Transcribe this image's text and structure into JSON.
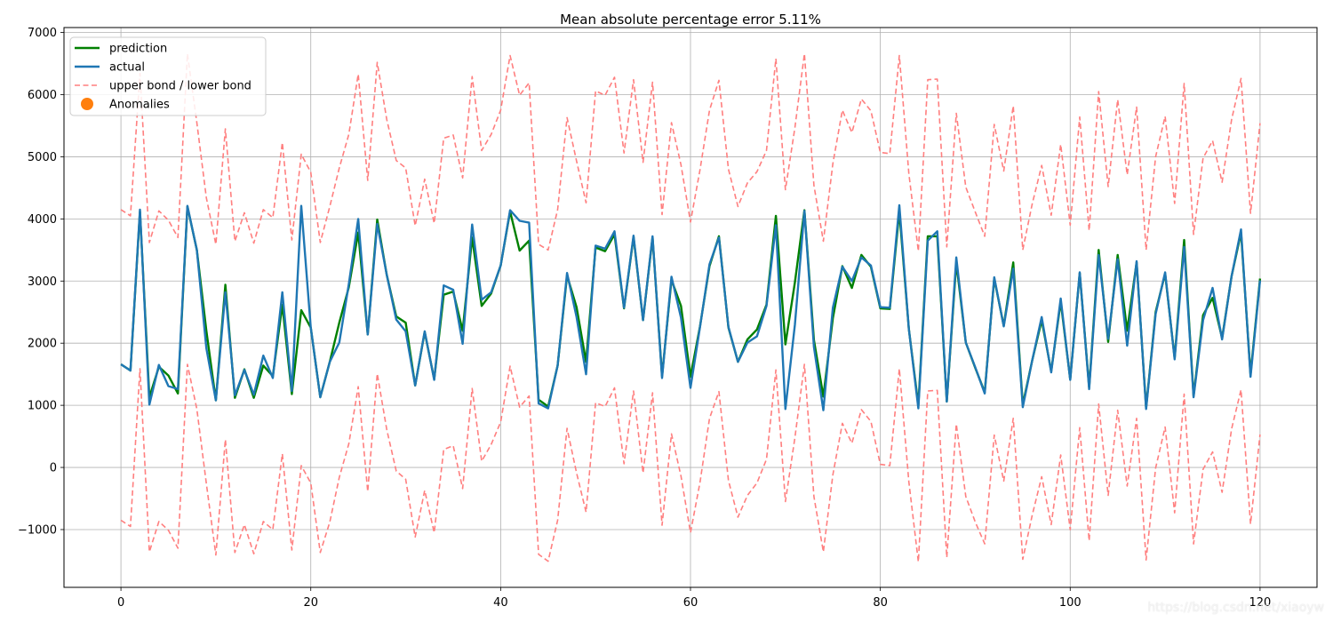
{
  "chart_data": {
    "type": "line",
    "title": "Mean absolute percentage error 5.11%",
    "xlabel": "",
    "ylabel": "",
    "xlim": [
      -6,
      126
    ],
    "ylim": [
      -1930,
      7080
    ],
    "x_ticks": [
      0,
      20,
      40,
      60,
      80,
      100,
      120
    ],
    "y_ticks": [
      -1000,
      0,
      1000,
      2000,
      3000,
      4000,
      5000,
      6000,
      7000
    ],
    "grid": true,
    "legend_position": "upper-left",
    "x": [
      0,
      1,
      2,
      3,
      4,
      5,
      6,
      7,
      8,
      9,
      10,
      11,
      12,
      13,
      14,
      15,
      16,
      17,
      18,
      19,
      20,
      21,
      22,
      23,
      24,
      25,
      26,
      27,
      28,
      29,
      30,
      31,
      32,
      33,
      34,
      35,
      36,
      37,
      38,
      39,
      40,
      41,
      42,
      43,
      44,
      45,
      46,
      47,
      48,
      49,
      50,
      51,
      52,
      53,
      54,
      55,
      56,
      57,
      58,
      59,
      60,
      61,
      62,
      63,
      64,
      65,
      66,
      67,
      68,
      69,
      70,
      71,
      72,
      73,
      74,
      75,
      76,
      77,
      78,
      79,
      80,
      81,
      82,
      83,
      84,
      85,
      86,
      87,
      88,
      89,
      90,
      91,
      92,
      93,
      94,
      95,
      96,
      97,
      98,
      99,
      100,
      101,
      102,
      103,
      104,
      105,
      106,
      107,
      108,
      109,
      110,
      111,
      112,
      113,
      114,
      115,
      116,
      117,
      118,
      119,
      120
    ],
    "series": [
      {
        "name": "prediction",
        "style": "solid",
        "color": "#008000",
        "values": [
          1660,
          1560,
          4120,
          1130,
          1620,
          1480,
          1190,
          4200,
          3500,
          2200,
          1080,
          2940,
          1120,
          1580,
          1120,
          1640,
          1470,
          2620,
          1180,
          2530,
          2250,
          1130,
          1700,
          2330,
          2900,
          3780,
          2140,
          3990,
          3100,
          2430,
          2330,
          1320,
          2180,
          1420,
          2780,
          2830,
          2200,
          3700,
          2600,
          2800,
          3250,
          4120,
          3490,
          3650,
          1090,
          980,
          1640,
          3090,
          2580,
          1700,
          3540,
          3480,
          3750,
          2560,
          3710,
          2370,
          3700,
          1470,
          3020,
          2600,
          1460,
          2270,
          3240,
          3720,
          2250,
          1700,
          2060,
          2220,
          2620,
          4050,
          1980,
          2980,
          4140,
          2050,
          1140,
          2400,
          3240,
          2890,
          3420,
          3230,
          2560,
          2550,
          4120,
          2230,
          1000,
          3720,
          3720,
          1060,
          3300,
          2010,
          1600,
          1210,
          3040,
          2280,
          3300,
          1010,
          1720,
          2370,
          1550,
          2670,
          1420,
          3130,
          1290,
          3500,
          2020,
          3420,
          2200,
          3300,
          960,
          2500,
          3120,
          1760,
          3660,
          1150,
          2450,
          2730,
          2080,
          3080,
          3780,
          1500,
          3040
        ]
      },
      {
        "name": "actual",
        "style": "solid",
        "color": "#1f77b4",
        "values": [
          1660,
          1560,
          4150,
          1010,
          1650,
          1310,
          1260,
          4210,
          3500,
          1920,
          1080,
          2820,
          1160,
          1570,
          1170,
          1800,
          1440,
          2820,
          1230,
          4210,
          2250,
          1130,
          1700,
          2010,
          2950,
          4000,
          2140,
          3920,
          3100,
          2380,
          2190,
          1320,
          2190,
          1410,
          2930,
          2860,
          1990,
          3910,
          2700,
          2820,
          3250,
          4140,
          3970,
          3940,
          1030,
          950,
          1640,
          3130,
          2420,
          1500,
          3570,
          3520,
          3800,
          2570,
          3730,
          2370,
          3720,
          1440,
          3070,
          2410,
          1280,
          2260,
          3270,
          3700,
          2260,
          1700,
          2010,
          2110,
          2600,
          3900,
          940,
          2300,
          4130,
          1940,
          920,
          2570,
          3230,
          3000,
          3380,
          3250,
          2580,
          2570,
          4220,
          2230,
          950,
          3650,
          3800,
          1060,
          3380,
          2010,
          1610,
          1190,
          3060,
          2270,
          3200,
          970,
          1720,
          2420,
          1530,
          2720,
          1410,
          3140,
          1260,
          3420,
          2070,
          3350,
          1960,
          3320,
          940,
          2470,
          3140,
          1740,
          3550,
          1130,
          2370,
          2890,
          2060,
          3080,
          3830,
          1460,
          3010
        ]
      },
      {
        "name": "upper bond",
        "style": "dashed",
        "color": "#ff7f7f",
        "values": [
          4150,
          4050,
          6340,
          3620,
          4130,
          3980,
          3700,
          6660,
          5550,
          4340,
          3590,
          5450,
          3640,
          4100,
          3610,
          4150,
          4020,
          5230,
          3660,
          5040,
          4750,
          3620,
          4200,
          4820,
          5360,
          6330,
          4620,
          6520,
          5600,
          4940,
          4820,
          3890,
          4640,
          3930,
          5300,
          5350,
          4660,
          6290,
          5100,
          5360,
          5750,
          6630,
          5990,
          6190,
          3590,
          3500,
          4150,
          5630,
          4930,
          4260,
          6060,
          5990,
          6280,
          5060,
          6240,
          4910,
          6200,
          4070,
          5550,
          4870,
          3950,
          4790,
          5750,
          6230,
          4800,
          4200,
          4580,
          4760,
          5100,
          6580,
          4470,
          5470,
          6660,
          4540,
          3640,
          4890,
          5750,
          5390,
          5930,
          5740,
          5070,
          5050,
          6630,
          4730,
          3480,
          6240,
          6250,
          3550,
          5700,
          4510,
          4110,
          3720,
          5520,
          4770,
          5820,
          3500,
          4240,
          4860,
          4060,
          5200,
          3900,
          5640,
          3810,
          6050,
          4520,
          5920,
          4710,
          5800,
          3500,
          5000,
          5650,
          4250,
          6180,
          3750,
          4980,
          5260,
          4590,
          5600,
          6260,
          4090,
          5540
        ]
      },
      {
        "name": "lower bond",
        "style": "dashed",
        "color": "#ff7f7f",
        "values": [
          -850,
          -950,
          1590,
          -1360,
          -870,
          -1010,
          -1300,
          1660,
          940,
          -260,
          -1410,
          450,
          -1370,
          -920,
          -1390,
          -870,
          -1000,
          220,
          -1330,
          30,
          -250,
          -1370,
          -880,
          -160,
          380,
          1300,
          -390,
          1510,
          610,
          -60,
          -190,
          -1120,
          -370,
          -1050,
          290,
          350,
          -340,
          1270,
          100,
          370,
          730,
          1630,
          970,
          1150,
          -1400,
          -1510,
          -850,
          630,
          -90,
          -720,
          1040,
          980,
          1280,
          60,
          1230,
          -90,
          1200,
          -930,
          540,
          -140,
          -1050,
          -240,
          790,
          1220,
          -210,
          -800,
          -450,
          -250,
          130,
          1570,
          -550,
          480,
          1660,
          -470,
          -1360,
          -120,
          710,
          390,
          930,
          740,
          50,
          30,
          1590,
          -230,
          -1520,
          1230,
          1240,
          -1450,
          700,
          -470,
          -880,
          -1230,
          520,
          -220,
          790,
          -1480,
          -770,
          -150,
          -920,
          200,
          -1000,
          640,
          -1180,
          1020,
          -450,
          920,
          -300,
          790,
          -1490,
          -10,
          650,
          -730,
          1180,
          -1230,
          -30,
          250,
          -400,
          620,
          1250,
          -910,
          530
        ]
      }
    ],
    "legend": [
      {
        "label": "prediction",
        "kind": "line",
        "color": "#008000"
      },
      {
        "label": "actual",
        "kind": "line",
        "color": "#1f77b4"
      },
      {
        "label": "upper bond / lower bond",
        "kind": "dashed",
        "color": "#ff7f7f"
      },
      {
        "label": "Anomalies",
        "kind": "marker",
        "color": "#ff7f0e"
      }
    ]
  },
  "watermark": "https://blog.csdn.net/xiaoyw"
}
